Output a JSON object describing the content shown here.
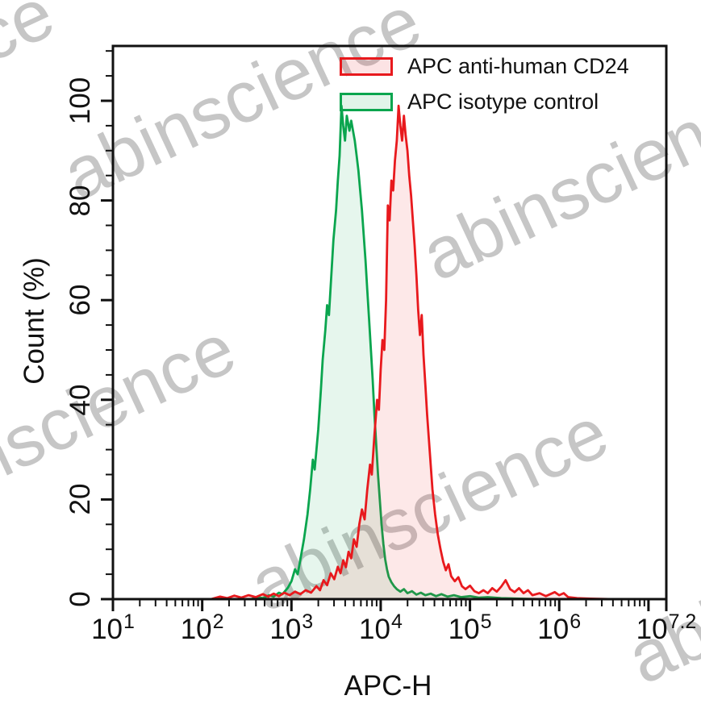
{
  "figure": {
    "background": "#ffffff"
  },
  "watermark": {
    "text": "abinscience",
    "color": "#c6c6c6"
  },
  "legend": {
    "position": "top-right",
    "items": [
      {
        "label": "APC anti-human CD24",
        "color": "#e8191d",
        "fill": "rgba(232,25,29,0.12)"
      },
      {
        "label": "APC isotype control",
        "color": "#0aa54e",
        "fill": "rgba(10,165,78,0.12)"
      }
    ]
  },
  "chart_data": {
    "type": "area",
    "subtype": "flow-cytometry-overlay-histogram",
    "title": "",
    "xlabel": "APC-H",
    "ylabel": "Count  (%)",
    "x_scale": "log10",
    "grid": false,
    "legend_position": "top-right",
    "x_axis": {
      "base": "10",
      "range": [
        1,
        7.2
      ],
      "major_ticks": [
        1,
        2,
        3,
        4,
        5,
        6,
        7,
        7.2
      ],
      "labeled_ticks": [
        {
          "exp": "1",
          "log": 1
        },
        {
          "exp": "2",
          "log": 2
        },
        {
          "exp": "3",
          "log": 3
        },
        {
          "exp": "4",
          "log": 4
        },
        {
          "exp": "5",
          "log": 5
        },
        {
          "exp": "6",
          "log": 6
        },
        {
          "exp": "7.2",
          "log": 7.2
        }
      ]
    },
    "y_axis": {
      "ticks": [
        0,
        20,
        40,
        60,
        80,
        100
      ],
      "minor_step": 5,
      "range": [
        0,
        111
      ]
    },
    "series": [
      {
        "name": "APC anti-human CD24",
        "stroke": "#e8191d",
        "fill": "rgba(232,25,29,0.10)",
        "peak_log10": 4.2,
        "peak_percent": 99,
        "points": [
          [
            1,
            0
          ],
          [
            2.1,
            0
          ],
          [
            2.2,
            0.5
          ],
          [
            2.28,
            0.2
          ],
          [
            2.36,
            0.7
          ],
          [
            2.44,
            0.3
          ],
          [
            2.52,
            0.8
          ],
          [
            2.6,
            0.4
          ],
          [
            2.68,
            1.0
          ],
          [
            2.74,
            0.5
          ],
          [
            2.8,
            1.1
          ],
          [
            2.86,
            0.6
          ],
          [
            2.92,
            1.3
          ],
          [
            2.98,
            0.8
          ],
          [
            3.04,
            1.5
          ],
          [
            3.1,
            1.0
          ],
          [
            3.16,
            1.8
          ],
          [
            3.22,
            1.3
          ],
          [
            3.28,
            2.6
          ],
          [
            3.32,
            1.8
          ],
          [
            3.36,
            3.8
          ],
          [
            3.4,
            2.8
          ],
          [
            3.44,
            5.2
          ],
          [
            3.48,
            4.0
          ],
          [
            3.52,
            6.5
          ],
          [
            3.55,
            5.2
          ],
          [
            3.58,
            7.8
          ],
          [
            3.61,
            6.4
          ],
          [
            3.64,
            9.5
          ],
          [
            3.67,
            8.2
          ],
          [
            3.7,
            12
          ],
          [
            3.73,
            10.5
          ],
          [
            3.76,
            15
          ],
          [
            3.79,
            18
          ],
          [
            3.82,
            16
          ],
          [
            3.85,
            22
          ],
          [
            3.88,
            27
          ],
          [
            3.9,
            25
          ],
          [
            3.93,
            33
          ],
          [
            3.96,
            40
          ],
          [
            3.98,
            38
          ],
          [
            4.0,
            46
          ],
          [
            4.02,
            52
          ],
          [
            4.04,
            50
          ],
          [
            4.06,
            60
          ],
          [
            4.08,
            79
          ],
          [
            4.1,
            76
          ],
          [
            4.12,
            84
          ],
          [
            4.14,
            82
          ],
          [
            4.16,
            88
          ],
          [
            4.18,
            92
          ],
          [
            4.2,
            99
          ],
          [
            4.22,
            95
          ],
          [
            4.24,
            92
          ],
          [
            4.26,
            97
          ],
          [
            4.28,
            93
          ],
          [
            4.3,
            90
          ],
          [
            4.32,
            85
          ],
          [
            4.34,
            81
          ],
          [
            4.36,
            76
          ],
          [
            4.38,
            71
          ],
          [
            4.4,
            65
          ],
          [
            4.42,
            58
          ],
          [
            4.44,
            53
          ],
          [
            4.46,
            57
          ],
          [
            4.48,
            49
          ],
          [
            4.5,
            43
          ],
          [
            4.52,
            37
          ],
          [
            4.54,
            32
          ],
          [
            4.56,
            27
          ],
          [
            4.58,
            22
          ],
          [
            4.61,
            17
          ],
          [
            4.64,
            13
          ],
          [
            4.67,
            10
          ],
          [
            4.7,
            7.5
          ],
          [
            4.73,
            5.8
          ],
          [
            4.76,
            7.0
          ],
          [
            4.79,
            4.6
          ],
          [
            4.83,
            3.6
          ],
          [
            4.87,
            4.4
          ],
          [
            4.91,
            2.6
          ],
          [
            4.95,
            2.0
          ],
          [
            5.0,
            2.7
          ],
          [
            5.05,
            1.6
          ],
          [
            5.1,
            1.2
          ],
          [
            5.15,
            1.8
          ],
          [
            5.2,
            1.2
          ],
          [
            5.25,
            2.2
          ],
          [
            5.3,
            1.5
          ],
          [
            5.35,
            2.5
          ],
          [
            5.4,
            3.8
          ],
          [
            5.45,
            2.0
          ],
          [
            5.5,
            1.4
          ],
          [
            5.55,
            2.2
          ],
          [
            5.6,
            1.2
          ],
          [
            5.65,
            1.8
          ],
          [
            5.7,
            0.8
          ],
          [
            5.78,
            1.2
          ],
          [
            5.85,
            0.6
          ],
          [
            5.95,
            1.4
          ],
          [
            6.0,
            0.8
          ],
          [
            6.05,
            1.2
          ],
          [
            6.1,
            0.4
          ],
          [
            6.2,
            0.2
          ],
          [
            6.35,
            0.1
          ],
          [
            6.6,
            0
          ],
          [
            7.2,
            0
          ]
        ]
      },
      {
        "name": "APC isotype control",
        "stroke": "#0aa54e",
        "fill": "rgba(10,165,78,0.10)",
        "peak_log10": 3.6,
        "peak_percent": 99,
        "points": [
          [
            1,
            0
          ],
          [
            2.0,
            0
          ],
          [
            2.55,
            0
          ],
          [
            2.62,
            0.4
          ],
          [
            2.68,
            0.2
          ],
          [
            2.75,
            0.8
          ],
          [
            2.8,
            0.5
          ],
          [
            2.86,
            1.3
          ],
          [
            2.9,
            1.0
          ],
          [
            2.96,
            2.3
          ],
          [
            3.0,
            3.6
          ],
          [
            3.04,
            6
          ],
          [
            3.07,
            5
          ],
          [
            3.1,
            8
          ],
          [
            3.14,
            12
          ],
          [
            3.18,
            17
          ],
          [
            3.21,
            22
          ],
          [
            3.24,
            28
          ],
          [
            3.26,
            26
          ],
          [
            3.3,
            34
          ],
          [
            3.33,
            42
          ],
          [
            3.35,
            48
          ],
          [
            3.38,
            54
          ],
          [
            3.4,
            59
          ],
          [
            3.42,
            57
          ],
          [
            3.45,
            66
          ],
          [
            3.47,
            72
          ],
          [
            3.5,
            78
          ],
          [
            3.52,
            84
          ],
          [
            3.54,
            89
          ],
          [
            3.56,
            99
          ],
          [
            3.58,
            95
          ],
          [
            3.6,
            92
          ],
          [
            3.62,
            97
          ],
          [
            3.65,
            94
          ],
          [
            3.67,
            96
          ],
          [
            3.69,
            94
          ],
          [
            3.71,
            92
          ],
          [
            3.73,
            89
          ],
          [
            3.75,
            86
          ],
          [
            3.77,
            82
          ],
          [
            3.79,
            78
          ],
          [
            3.81,
            73
          ],
          [
            3.83,
            68
          ],
          [
            3.85,
            62
          ],
          [
            3.87,
            56
          ],
          [
            3.89,
            50
          ],
          [
            3.91,
            44
          ],
          [
            3.93,
            37
          ],
          [
            3.95,
            31
          ],
          [
            3.97,
            25
          ],
          [
            3.99,
            20
          ],
          [
            4.01,
            15
          ],
          [
            4.03,
            11
          ],
          [
            4.05,
            8
          ],
          [
            4.07,
            6
          ],
          [
            4.09,
            4.5
          ],
          [
            4.12,
            3.4
          ],
          [
            4.15,
            2.6
          ],
          [
            4.18,
            2.0
          ],
          [
            4.22,
            1.5
          ],
          [
            4.26,
            2.0
          ],
          [
            4.3,
            1.2
          ],
          [
            4.35,
            1.6
          ],
          [
            4.4,
            0.9
          ],
          [
            4.45,
            1.3
          ],
          [
            4.5,
            0.8
          ],
          [
            4.56,
            1.1
          ],
          [
            4.62,
            0.6
          ],
          [
            4.68,
            1.0
          ],
          [
            4.75,
            0.5
          ],
          [
            4.82,
            0.8
          ],
          [
            4.9,
            0.4
          ],
          [
            5.0,
            0.6
          ],
          [
            5.1,
            0.3
          ],
          [
            5.2,
            0.4
          ],
          [
            5.35,
            0.2
          ],
          [
            5.55,
            0.1
          ],
          [
            5.8,
            0
          ],
          [
            7.2,
            0
          ]
        ]
      }
    ]
  }
}
